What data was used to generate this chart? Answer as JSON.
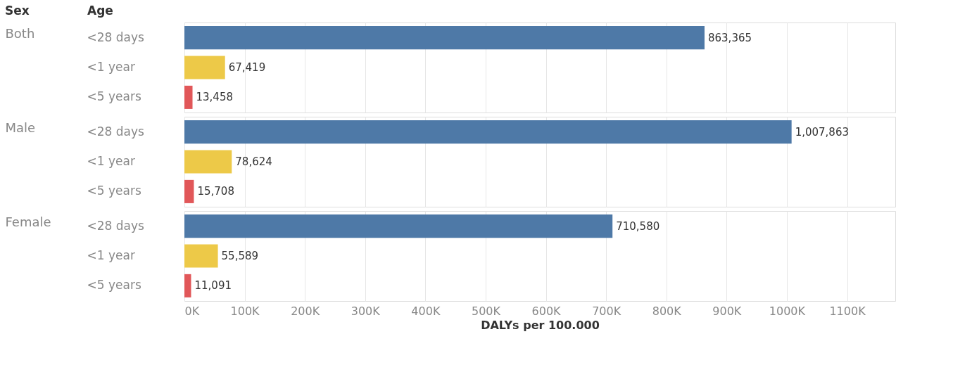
{
  "chart_data": [
    {
      "type": "bar",
      "orientation": "horizontal",
      "annotations": [
        "Sex",
        "Age"
      ],
      "ylabel": "Both",
      "categories": [
        "<28 days",
        "<1 year",
        "<5 years"
      ],
      "values": [
        863365,
        67419,
        13458
      ],
      "colors": [
        "#4e79a7",
        "#edc948",
        "#e15759"
      ],
      "value_labels": [
        "863,365",
        "67,419",
        "13,458"
      ],
      "xlim": [
        0,
        1180000
      ],
      "xticks": [
        {
          "value": 0,
          "label": null
        },
        {
          "value": 100000,
          "label": null
        },
        {
          "value": 200000,
          "label": null
        },
        {
          "value": 300000,
          "label": null
        },
        {
          "value": 400000,
          "label": null
        },
        {
          "value": 500000,
          "label": null
        },
        {
          "value": 600000,
          "label": null
        },
        {
          "value": 700000,
          "label": null
        },
        {
          "value": 800000,
          "label": null
        },
        {
          "value": 900000,
          "label": null
        },
        {
          "value": 1000000,
          "label": null
        },
        {
          "value": 1100000,
          "label": null
        }
      ],
      "grid": "x",
      "tick_labels": "y"
    },
    {
      "type": "bar",
      "orientation": "horizontal",
      "ylabel": "Male",
      "categories": [
        "<28 days",
        "<1 year",
        "<5 years"
      ],
      "values": [
        1007863,
        78624,
        15708
      ],
      "colors": [
        "#4e79a7",
        "#edc948",
        "#e15759"
      ],
      "value_labels": [
        "1,007,863",
        "78,624",
        "15,708"
      ],
      "xlim": [
        0,
        1180000
      ],
      "xticks": [
        {
          "value": 0,
          "label": null
        },
        {
          "value": 100000,
          "label": null
        },
        {
          "value": 200000,
          "label": null
        },
        {
          "value": 300000,
          "label": null
        },
        {
          "value": 400000,
          "label": null
        },
        {
          "value": 500000,
          "label": null
        },
        {
          "value": 600000,
          "label": null
        },
        {
          "value": 700000,
          "label": null
        },
        {
          "value": 800000,
          "label": null
        },
        {
          "value": 900000,
          "label": null
        },
        {
          "value": 1000000,
          "label": null
        },
        {
          "value": 1100000,
          "label": null
        }
      ],
      "grid": "x",
      "tick_labels": "y"
    },
    {
      "type": "bar",
      "orientation": "horizontal",
      "ylabel": "Female",
      "xlabel": "DALYs per 100.000",
      "categories": [
        "<28 days",
        "<1 year",
        "<5 years"
      ],
      "values": [
        710580,
        55589,
        11091
      ],
      "colors": [
        "#4e79a7",
        "#edc948",
        "#e15759"
      ],
      "value_labels": [
        "710,580",
        "55,589",
        "11,091"
      ],
      "xlim": [
        0,
        1180000
      ],
      "xticks": [
        {
          "value": 0,
          "label": "0K"
        },
        {
          "value": 100000,
          "label": "100K"
        },
        {
          "value": 200000,
          "label": "200K"
        },
        {
          "value": 300000,
          "label": "300K"
        },
        {
          "value": 400000,
          "label": "400K"
        },
        {
          "value": 500000,
          "label": "500K"
        },
        {
          "value": 600000,
          "label": "600K"
        },
        {
          "value": 700000,
          "label": "700K"
        },
        {
          "value": 800000,
          "label": "800K"
        },
        {
          "value": 900000,
          "label": "900K"
        },
        {
          "value": 1000000,
          "label": "1000K"
        },
        {
          "value": 1100000,
          "label": "1100K"
        }
      ],
      "grid": "x"
    }
  ]
}
